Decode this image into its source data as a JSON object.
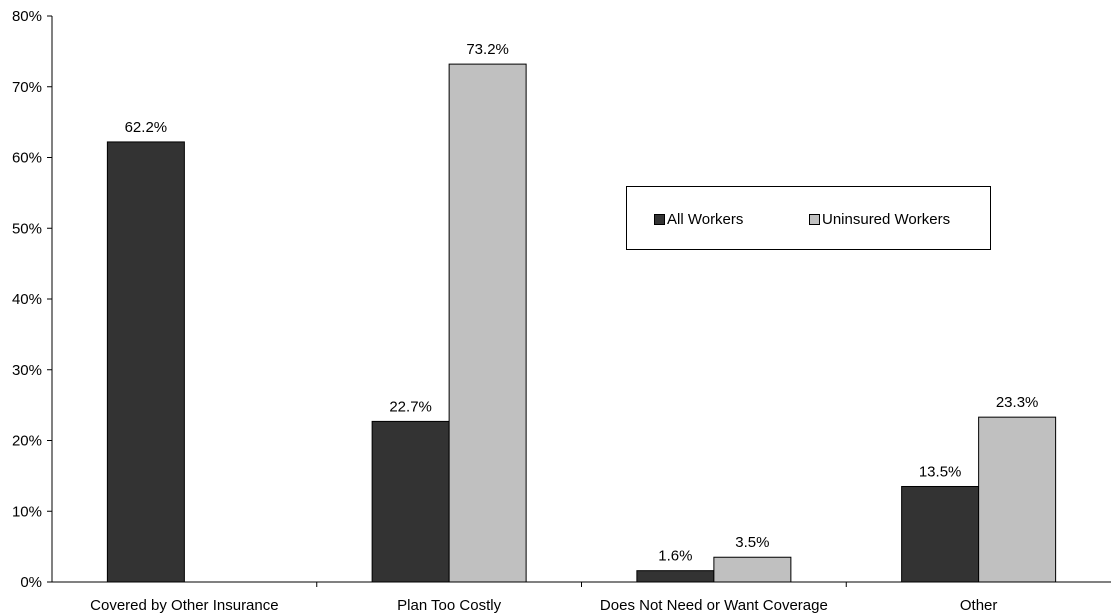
{
  "chart_data": {
    "type": "bar",
    "title": "",
    "xlabel": "",
    "ylabel": "",
    "ylim": [
      0,
      80
    ],
    "y_ticks": [
      0,
      10,
      20,
      30,
      40,
      50,
      60,
      70,
      80
    ],
    "y_tick_labels": [
      "0%",
      "10%",
      "20%",
      "30%",
      "40%",
      "50%",
      "60%",
      "70%",
      "80%"
    ],
    "categories": [
      "Covered by Other Insurance",
      "Plan Too Costly",
      "Does Not Need or Want Coverage",
      "Other"
    ],
    "series": [
      {
        "name": "All Workers",
        "color": "#333333",
        "values": [
          62.2,
          22.7,
          1.6,
          13.5
        ],
        "labels": [
          "62.2%",
          "22.7%",
          "1.6%",
          "13.5%"
        ]
      },
      {
        "name": "Uninsured Workers",
        "color": "#c0c0c0",
        "values": [
          null,
          73.2,
          3.5,
          23.3
        ],
        "labels": [
          "",
          "73.2%",
          "3.5%",
          "23.3%"
        ]
      }
    ],
    "grid": false,
    "legend_position": "right"
  }
}
